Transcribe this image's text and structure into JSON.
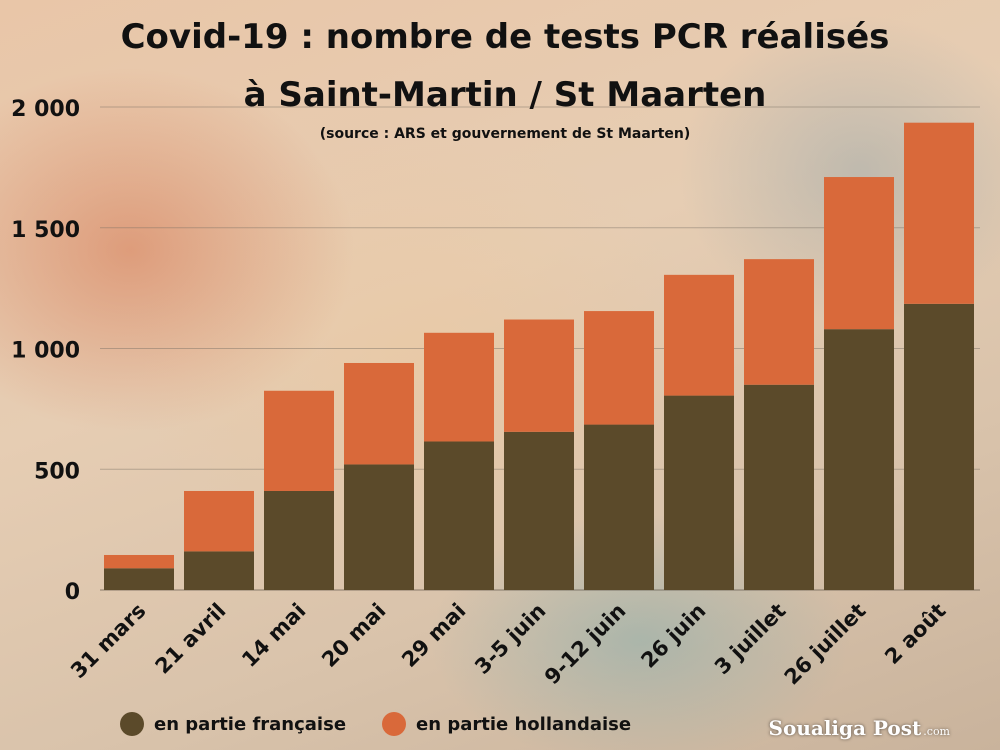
{
  "chart_data": {
    "type": "bar",
    "stacked": true,
    "title": "Covid-19 : nombre de tests PCR réalisés",
    "title_line2": "à Saint-Martin / St Maarten",
    "subtitle": "(source : ARS et gouvernement de St Maarten)",
    "categories": [
      "31 mars",
      "21 avril",
      "14 mai",
      "20 mai",
      "29 mai",
      "3-5 juin",
      "9-12  juin",
      "26 juin",
      "3 juillet",
      "26 juillet",
      "2 août"
    ],
    "series": [
      {
        "name": "en partie française",
        "color": "#5b4a2a",
        "values": [
          90,
          160,
          410,
          520,
          615,
          655,
          685,
          805,
          850,
          1080,
          1185
        ]
      },
      {
        "name": "en partie hollandaise",
        "color": "#d9693a",
        "values": [
          55,
          250,
          415,
          420,
          450,
          465,
          470,
          500,
          520,
          630,
          750
        ]
      }
    ],
    "yticks": [
      0,
      500,
      1000,
      1500,
      2000
    ],
    "ytick_labels": [
      "0",
      "500",
      "1 000",
      "1 500",
      "2 000"
    ],
    "ylim": [
      0,
      2000
    ],
    "grid": true,
    "legend_position": "bottom-left"
  },
  "branding": {
    "logo_text": "Soualiga Post",
    "logo_suffix": ".com"
  }
}
